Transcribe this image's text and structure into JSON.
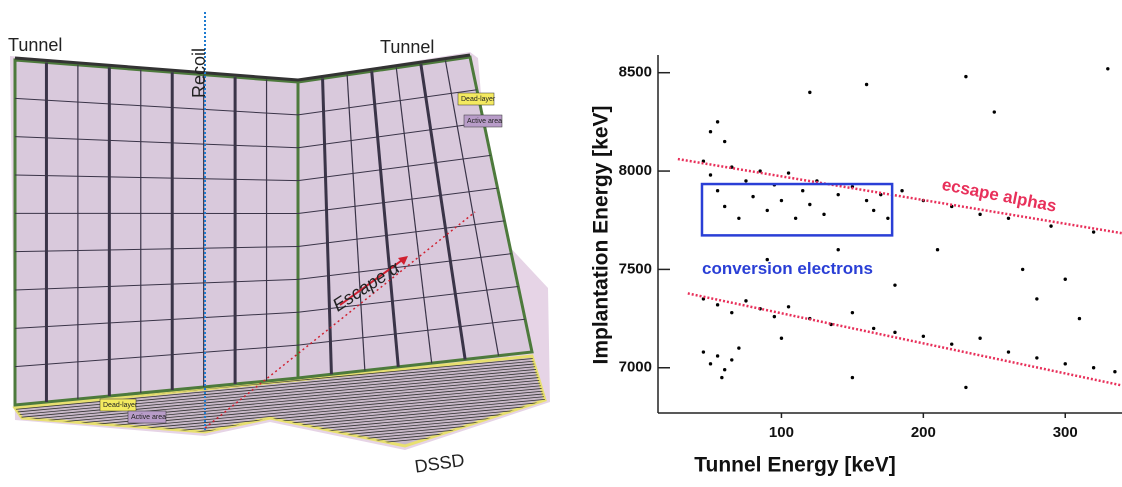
{
  "diagram": {
    "tunnel_left": "Tunnel",
    "tunnel_right": "Tunnel",
    "recoil": "Recoil",
    "escape": "Escape α",
    "wall_dead_layer": "Dead-layer",
    "wall_active_area": "Active area",
    "floor_dead_layer": "Dead-layer",
    "floor_active_area": "Active area",
    "dssd": "DSSD"
  },
  "chart_data": {
    "type": "scatter",
    "xlabel": "Tunnel Energy [keV]",
    "ylabel": "Implantation Energy [keV]",
    "xlim": [
      13,
      340
    ],
    "ylim": [
      6770,
      8590
    ],
    "xticks": [
      100,
      200,
      300
    ],
    "yticks": [
      7000,
      7500,
      8000,
      8500
    ],
    "series": [
      {
        "color": "#000000",
        "x": [
          45,
          50,
          55,
          60,
          65,
          70,
          75,
          80,
          85,
          90,
          95,
          100,
          105,
          110,
          115,
          120,
          125,
          130,
          140,
          150,
          160,
          165,
          170,
          175,
          185,
          200,
          220,
          240,
          260,
          290,
          320,
          50,
          55,
          60,
          45,
          55,
          65,
          75,
          85,
          95,
          105,
          120,
          135,
          150,
          165,
          180,
          200,
          220,
          240,
          260,
          280,
          300,
          320,
          335,
          45,
          50,
          55,
          60,
          65,
          70,
          58,
          120,
          160,
          230,
          330,
          250,
          210,
          270,
          300,
          180,
          90,
          140,
          310,
          230,
          150,
          100,
          280
        ],
        "values": [
          8050,
          7980,
          7900,
          7820,
          8020,
          7760,
          7950,
          7870,
          8000,
          7800,
          7930,
          7850,
          7990,
          7760,
          7900,
          7830,
          7950,
          7780,
          7880,
          7920,
          7850,
          7800,
          7880,
          7760,
          7900,
          7850,
          7820,
          7780,
          7760,
          7720,
          7690,
          8200,
          8250,
          8150,
          7350,
          7320,
          7280,
          7340,
          7300,
          7260,
          7310,
          7250,
          7220,
          7280,
          7200,
          7180,
          7160,
          7120,
          7150,
          7080,
          7050,
          7020,
          7000,
          6980,
          7080,
          7020,
          7060,
          6990,
          7040,
          7100,
          6950,
          8400,
          8440,
          8480,
          8520,
          8300,
          7600,
          7500,
          7450,
          7420,
          7550,
          7600,
          7250,
          6900,
          6950,
          7150,
          7350
        ]
      }
    ],
    "box": {
      "x": [
        44,
        178
      ],
      "y": [
        7673,
        7934
      ],
      "color": "#2a3fd6",
      "label": "conversion electrons"
    },
    "lines": [
      {
        "x": [
          27,
          340
        ],
        "y": [
          8061,
          7684
        ],
        "color": "#e8305a",
        "label": "ecsape alphas"
      },
      {
        "x": [
          34,
          340
        ],
        "y": [
          7378,
          6910
        ],
        "color": "#e8305a"
      }
    ]
  }
}
